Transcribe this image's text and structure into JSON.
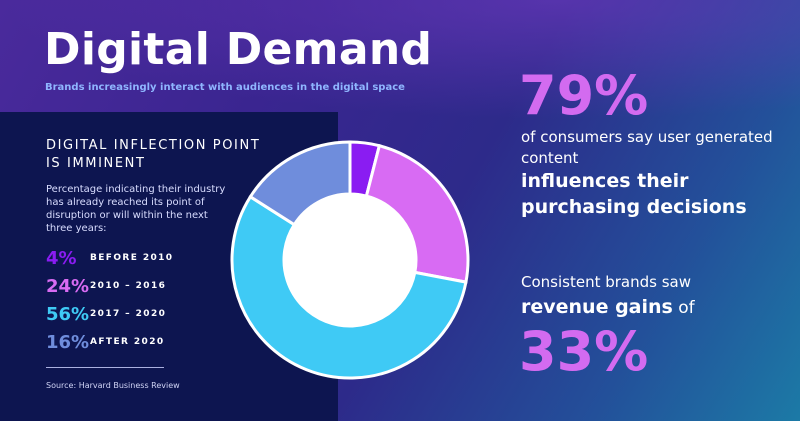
{
  "header": {
    "title": "Digital Demand",
    "subtitle": "Brands increasingly interact with audiences in the digital space"
  },
  "left_panel": {
    "title": "DIGITAL INFLECTION POINT IS IMMINENT",
    "description": "Percentage indicating their industry has already reached its point of disruption or will within the next three years:",
    "legend": [
      {
        "pct": "4%",
        "label": "BEFORE 2010",
        "color": "#8a1cf2"
      },
      {
        "pct": "24%",
        "label": "2010 – 2016",
        "color": "#d86bf3"
      },
      {
        "pct": "56%",
        "label": "2017 – 2020",
        "color": "#3fcaf5"
      },
      {
        "pct": "16%",
        "label": "AFTER 2020",
        "color": "#6f8ddc"
      }
    ],
    "source": "Source: Harvard Business Review"
  },
  "chart_data": {
    "type": "pie",
    "donut": true,
    "categories": [
      "BEFORE 2010",
      "2010 – 2016",
      "2017 – 2020",
      "AFTER 2020"
    ],
    "values": [
      4,
      24,
      56,
      16
    ],
    "colors": [
      "#8a1cf2",
      "#d86bf3",
      "#3fcaf5",
      "#6f8ddc"
    ]
  },
  "right_panel": {
    "stat1_value": "79%",
    "stat1_text": "of consumers say user generated content",
    "stat1_bold": "influences their purchasing decisions",
    "stat2_text": "Consistent brands saw",
    "stat2_bold": "revenue gains",
    "stat2_suffix": "of",
    "stat2_value": "33%"
  }
}
